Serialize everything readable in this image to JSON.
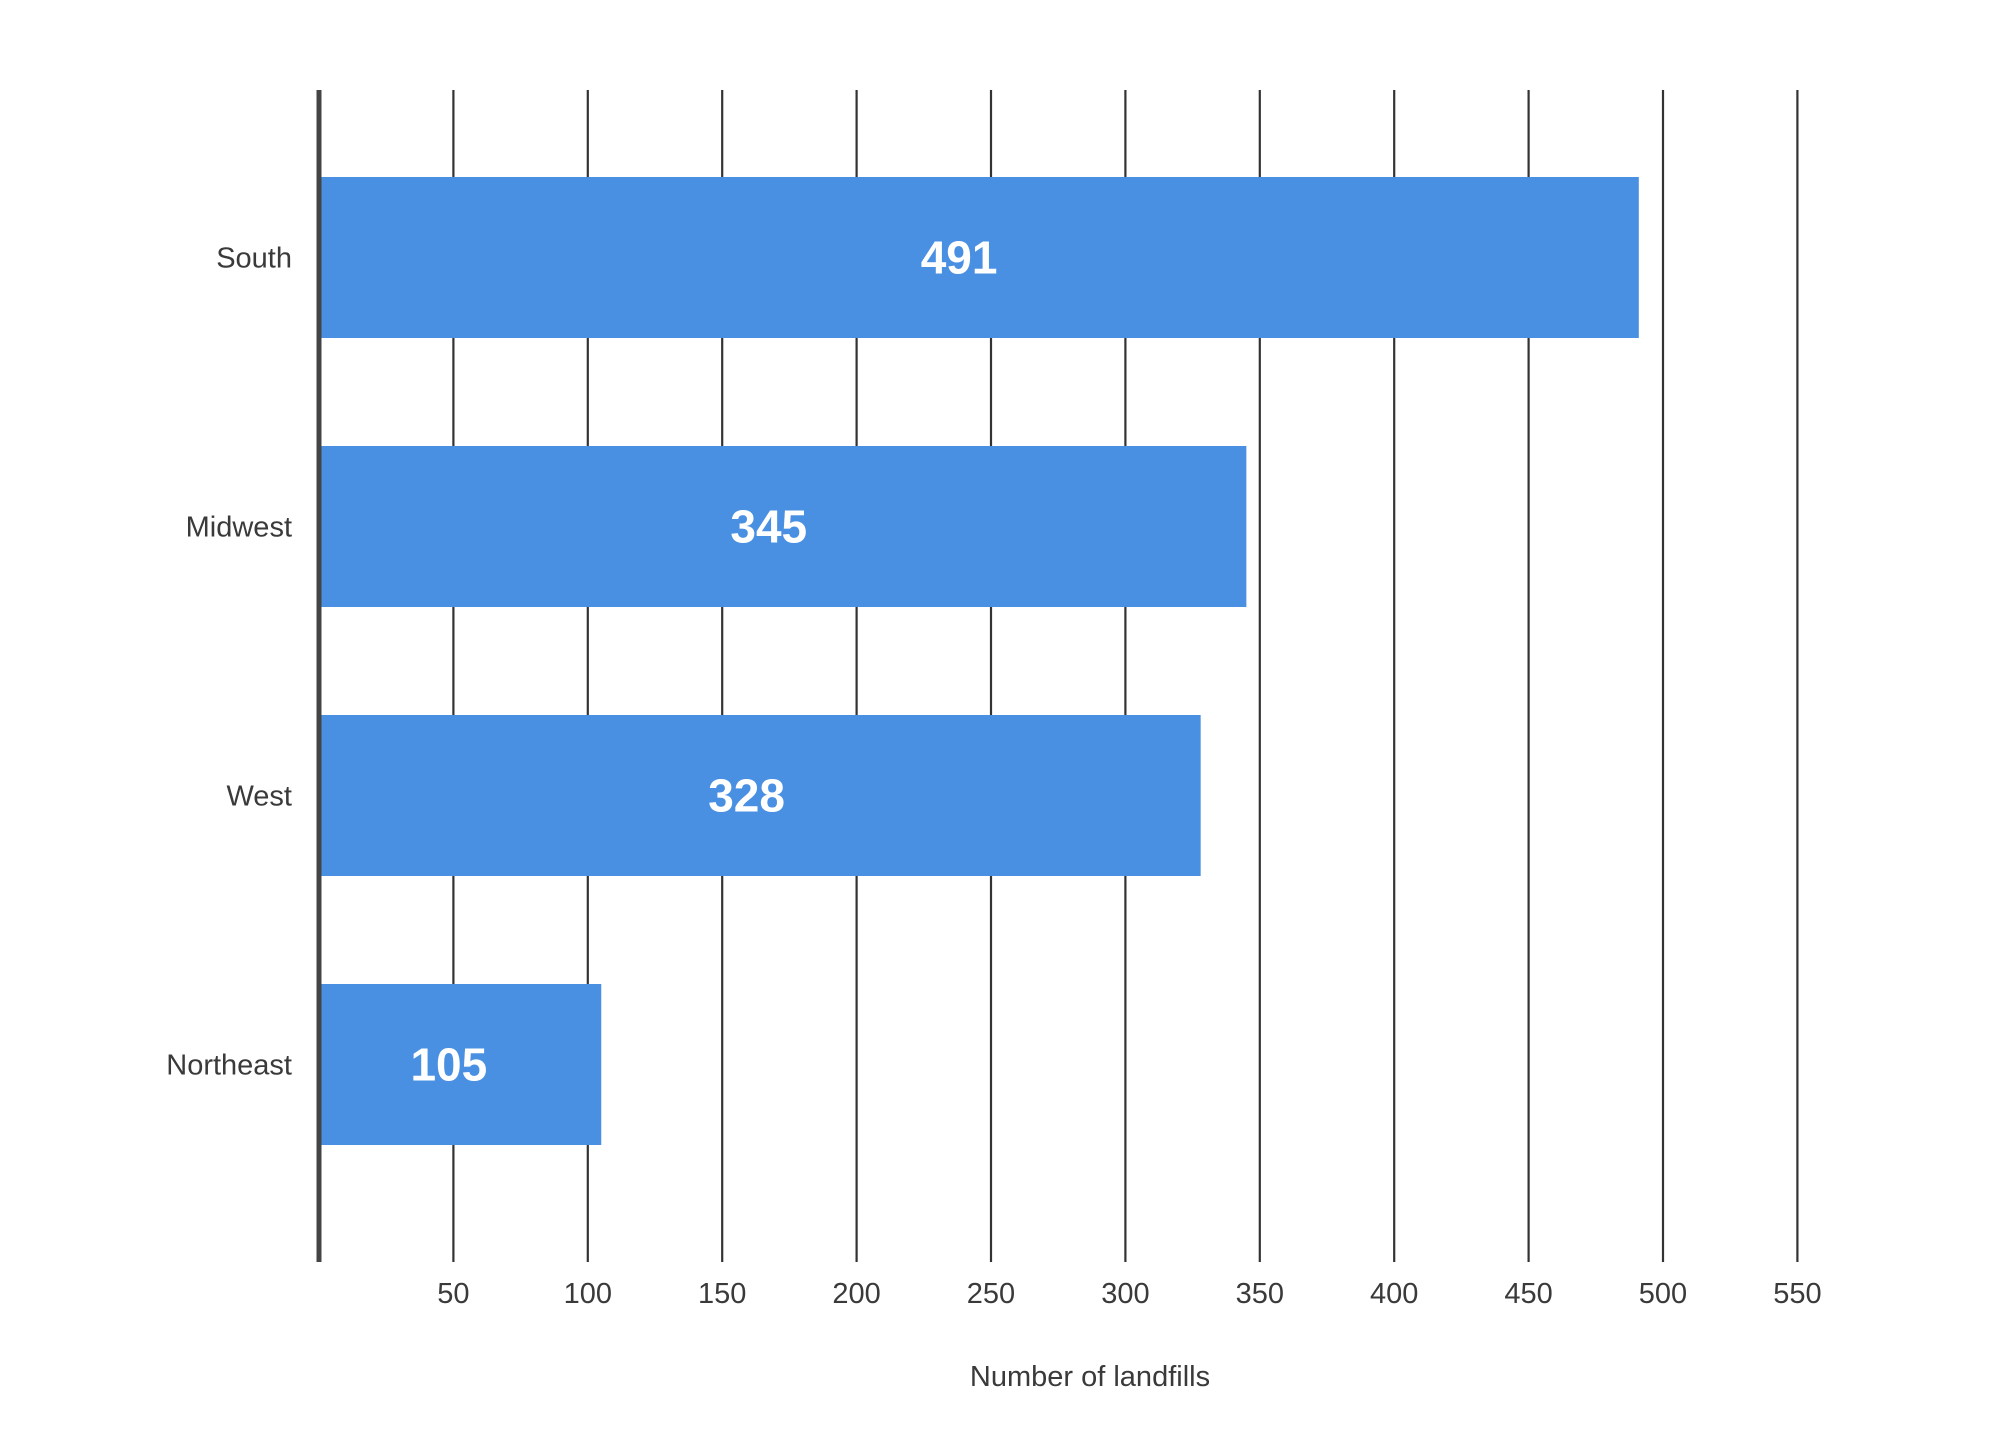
{
  "chart_data": {
    "type": "bar",
    "orientation": "horizontal",
    "categories": [
      "South",
      "Midwest",
      "West",
      "Northeast"
    ],
    "values": [
      491,
      345,
      328,
      105
    ],
    "data_labels": [
      "491",
      "345",
      "328",
      "105"
    ],
    "xlabel": "Number of landfills",
    "ylabel": "",
    "xlim": [
      0,
      550
    ],
    "xticks": [
      50,
      100,
      150,
      200,
      250,
      300,
      350,
      400,
      450,
      500,
      550
    ],
    "grid": true,
    "legend": "none",
    "colors": {
      "bar": "#4a90e2",
      "grid": "#333333",
      "axis": "#444444",
      "label": "#3a3a3a"
    }
  }
}
